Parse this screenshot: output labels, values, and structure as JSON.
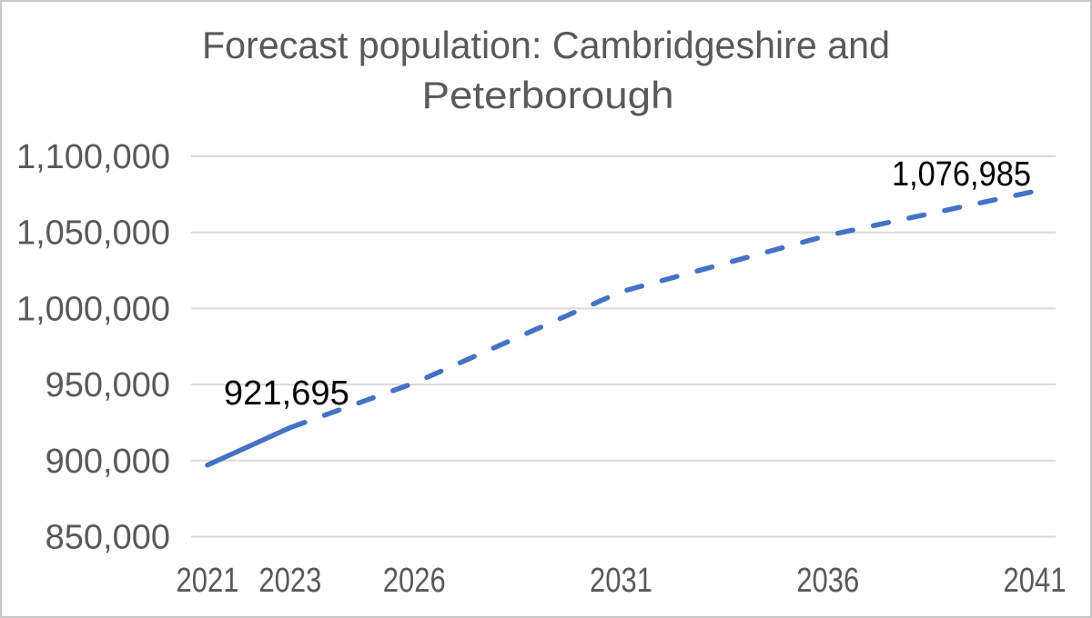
{
  "frame": {
    "background": "#FFFFFF",
    "border_color": "#C8C8C8"
  },
  "chart_data": {
    "type": "line",
    "title": "Forecast population: Cambridgeshire and Peterborough",
    "title_lines": [
      "Forecast population: Cambridgeshire and",
      "Peterborough"
    ],
    "x": [
      2021,
      2023,
      2026,
      2031,
      2036,
      2041
    ],
    "x_tick_labels": [
      "2021",
      "2023",
      "2026",
      "2031",
      "2036",
      "2041"
    ],
    "series": [
      {
        "name": "Forecast population: Cambridgeshire and Peterborough",
        "values": [
          897000,
          921695,
          951000,
          1011000,
          1048000,
          1076985
        ],
        "color": "#4472C4",
        "line_style": "solid from 2021 to 2023, dashed (forecast) from 2023 to 2041"
      }
    ],
    "solid_segment_end_x": 2023,
    "data_labels": [
      {
        "x": 2023,
        "text": "921,695"
      },
      {
        "x": 2041,
        "text": "1,076,985"
      }
    ],
    "y_ticks": {
      "values": [
        850000,
        900000,
        950000,
        1000000,
        1050000,
        1100000
      ],
      "labels": [
        "850,000",
        "900,000",
        "950,000",
        "1,000,000",
        "1,050,000",
        "1,100,000"
      ]
    },
    "ylim": [
      850000,
      1100000
    ],
    "xlim": [
      2021,
      2041
    ],
    "grid": "horizontal",
    "legend": "none",
    "colors": {
      "line": "#4472C4",
      "gridline": "#D9D9D9",
      "axis_text": "#595959",
      "title_text": "#595959",
      "data_label_text": "#000000"
    }
  }
}
